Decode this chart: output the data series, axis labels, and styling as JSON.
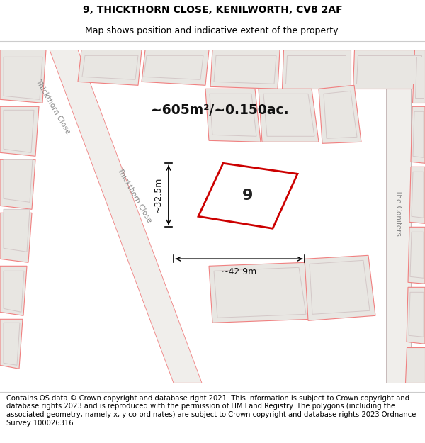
{
  "title_line1": "9, THICKTHORN CLOSE, KENILWORTH, CV8 2AF",
  "title_line2": "Map shows position and indicative extent of the property.",
  "footer_text": "Contains OS data © Crown copyright and database right 2021. This information is subject to Crown copyright and database rights 2023 and is reproduced with the permission of HM Land Registry. The polygons (including the associated geometry, namely x, y co-ordinates) are subject to Crown copyright and database rights 2023 Ordnance Survey 100026316.",
  "map_bg_color": "#f7f6f4",
  "plot_outline_color": "#f0a0a0",
  "road_outline_color": "#d0b0b0",
  "building_fill": "#e8e6e2",
  "building_outline": "#d4c8c8",
  "highlight_color": "#cc0000",
  "label_number": "9",
  "area_label": "~605m²/~0.150ac.",
  "dim_width": "~42.9m",
  "dim_height": "~32.5m",
  "title_fontsize": 10,
  "subtitle_fontsize": 9,
  "footer_fontsize": 7.2,
  "street_label_tc": "Thickthorn Close",
  "street_label_con": "The Conifers"
}
